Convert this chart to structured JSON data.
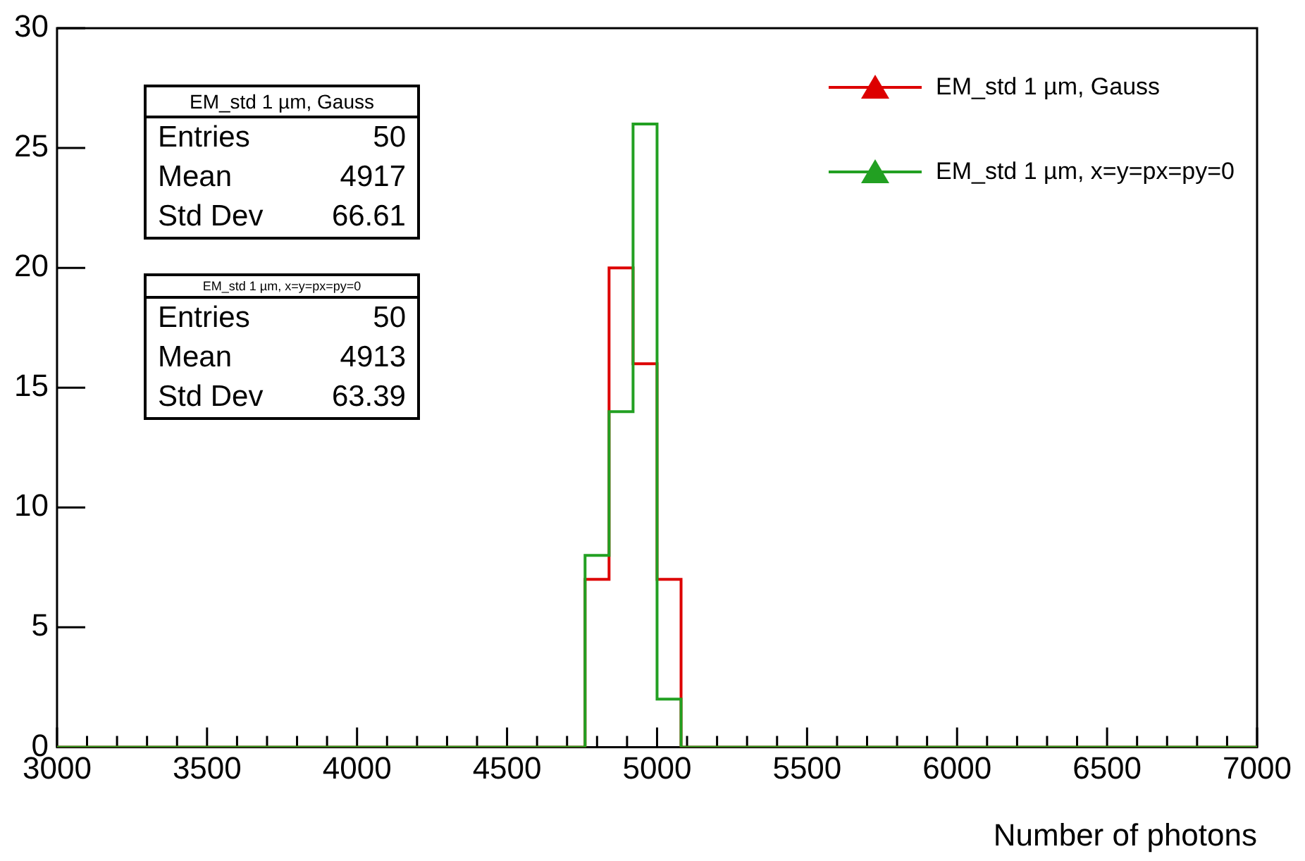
{
  "chart_data": {
    "type": "histogram",
    "xlabel": "Number of photons",
    "bins": [
      3000,
      3080,
      3160,
      3240,
      3320,
      3400,
      3480,
      3560,
      3640,
      3720,
      3800,
      3880,
      3960,
      4040,
      4120,
      4200,
      4280,
      4360,
      4440,
      4520,
      4600,
      4680,
      4760,
      4840,
      4920,
      5000,
      5080,
      5160,
      5240,
      5320,
      5400,
      5480,
      5560,
      5640,
      5720,
      5800,
      5880,
      5960,
      6040,
      6120,
      6200,
      6280,
      6360,
      6440,
      6520,
      6600,
      6680,
      6760,
      6840,
      6920,
      7000
    ],
    "series": [
      {
        "name": "EM_std 1 µm, Gauss",
        "color": "#dd0000",
        "marker": "triangle",
        "values": [
          0,
          0,
          0,
          0,
          0,
          0,
          0,
          0,
          0,
          0,
          0,
          0,
          0,
          0,
          0,
          0,
          0,
          0,
          0,
          0,
          0,
          0,
          7,
          20,
          16,
          7,
          0,
          0,
          0,
          0,
          0,
          0,
          0,
          0,
          0,
          0,
          0,
          0,
          0,
          0,
          0,
          0,
          0,
          0,
          0,
          0,
          0,
          0,
          0,
          0
        ]
      },
      {
        "name": "EM_std 1 µm, x=y=px=py=0",
        "color": "#22a022",
        "marker": "triangle",
        "values": [
          0,
          0,
          0,
          0,
          0,
          0,
          0,
          0,
          0,
          0,
          0,
          0,
          0,
          0,
          0,
          0,
          0,
          0,
          0,
          0,
          0,
          0,
          8,
          14,
          26,
          2,
          0,
          0,
          0,
          0,
          0,
          0,
          0,
          0,
          0,
          0,
          0,
          0,
          0,
          0,
          0,
          0,
          0,
          0,
          0,
          0,
          0,
          0,
          0,
          0
        ]
      }
    ],
    "xlim": [
      3000,
      7000
    ],
    "ylim": [
      0,
      30
    ],
    "xticks": [
      3000,
      {
        "value": 3100,
        "label": null
      },
      {
        "value": 3200,
        "label": null
      },
      {
        "value": 3300,
        "label": null
      },
      {
        "value": 3400,
        "label": null
      },
      3500,
      {
        "value": 3600,
        "label": null
      },
      {
        "value": 3700,
        "label": null
      },
      {
        "value": 3800,
        "label": null
      },
      {
        "value": 3900,
        "label": null
      },
      4000,
      {
        "value": 4100,
        "label": null
      },
      {
        "value": 4200,
        "label": null
      },
      {
        "value": 4300,
        "label": null
      },
      {
        "value": 4400,
        "label": null
      },
      4500,
      {
        "value": 4600,
        "label": null
      },
      {
        "value": 4700,
        "label": null
      },
      {
        "value": 4800,
        "label": null
      },
      {
        "value": 4900,
        "label": null
      },
      5000,
      {
        "value": 5100,
        "label": null
      },
      {
        "value": 5200,
        "label": null
      },
      {
        "value": 5300,
        "label": null
      },
      {
        "value": 5400,
        "label": null
      },
      5500,
      {
        "value": 5600,
        "label": null
      },
      {
        "value": 5700,
        "label": null
      },
      {
        "value": 5800,
        "label": null
      },
      {
        "value": 5900,
        "label": null
      },
      6000,
      {
        "value": 6100,
        "label": null
      },
      {
        "value": 6200,
        "label": null
      },
      {
        "value": 6300,
        "label": null
      },
      {
        "value": 6400,
        "label": null
      },
      6500,
      {
        "value": 6600,
        "label": null
      },
      {
        "value": 6700,
        "label": null
      },
      {
        "value": 6800,
        "label": null
      },
      {
        "value": 6900,
        "label": null
      },
      7000
    ],
    "yticks": [
      0,
      5,
      10,
      15,
      20,
      25,
      30
    ],
    "grid": false,
    "legend": "top right",
    "annotations": [
      "EM_std 1 µm, Gauss",
      "Entries",
      "50",
      "Mean",
      "4917",
      "Std Dev",
      "66.61",
      "EM_std 1 µm, x=y=px=py=0",
      "Entries",
      "50",
      "Mean",
      "4913",
      "Std Dev",
      "63.39"
    ]
  }
}
